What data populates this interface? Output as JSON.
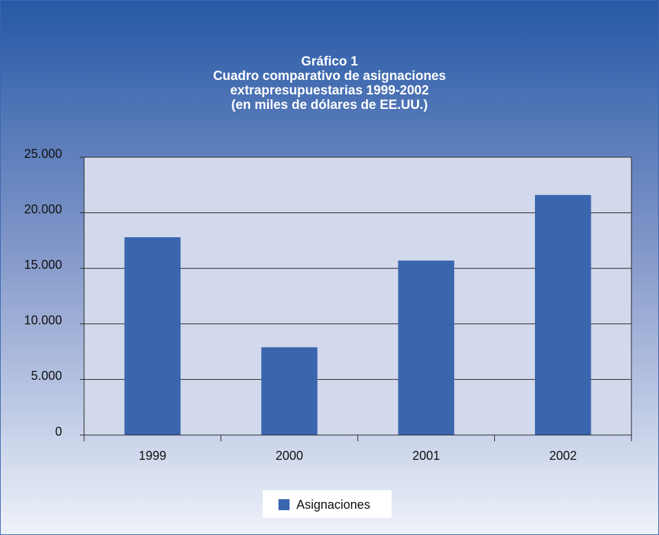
{
  "chart_data": {
    "type": "bar",
    "title": [
      "Gráfico 1",
      "Cuadro comparativo de asignaciones",
      "extrapresupuestarias 1999-2002",
      "(en miles de dólares de EE.UU.)"
    ],
    "categories": [
      "1999",
      "2000",
      "2001",
      "2002"
    ],
    "series": [
      {
        "name": "Asignaciones",
        "color": "#3a66ae",
        "values": [
          17800,
          7900,
          15700,
          21600
        ]
      }
    ],
    "ylim": [
      0,
      25000
    ],
    "yticks": [
      0,
      {
        "value": 5000,
        "label": "5.000"
      },
      {
        "value": 10000,
        "label": "10.000"
      },
      {
        "value": 15000,
        "label": "15.000"
      },
      {
        "value": 20000,
        "label": "20.000"
      },
      {
        "value": 25000,
        "label": "25.000"
      }
    ],
    "grid": true,
    "legend": "bottom"
  }
}
